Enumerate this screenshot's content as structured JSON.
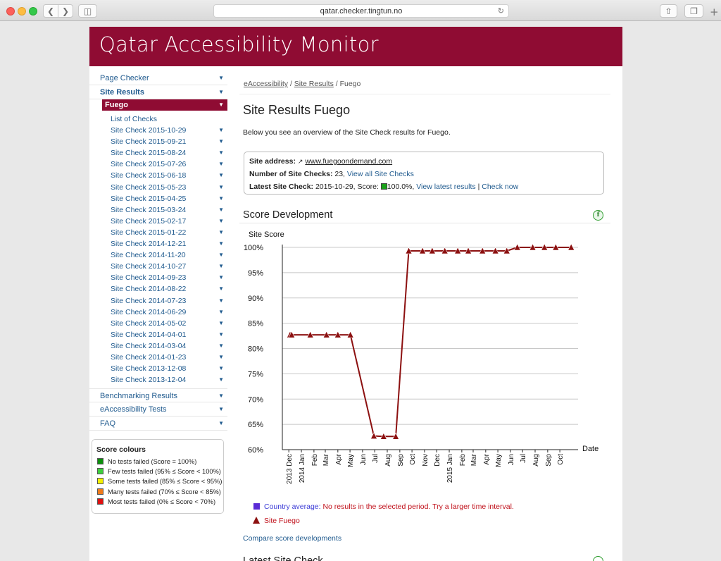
{
  "browser": {
    "url": "qatar.checker.tingtun.no"
  },
  "site": {
    "title": "Qatar Accessibility Monitor"
  },
  "sidebar": {
    "top_items": [
      {
        "label": "Page Checker"
      },
      {
        "label": "Site Results"
      }
    ],
    "current": "Fuego",
    "list_of_checks": "List of Checks",
    "site_checks": [
      "Site Check 2015-10-29",
      "Site Check 2015-09-21",
      "Site Check 2015-08-24",
      "Site Check 2015-07-26",
      "Site Check 2015-06-18",
      "Site Check 2015-05-23",
      "Site Check 2015-04-25",
      "Site Check 2015-03-24",
      "Site Check 2015-02-17",
      "Site Check 2015-01-22",
      "Site Check 2014-12-21",
      "Site Check 2014-11-20",
      "Site Check 2014-10-27",
      "Site Check 2014-09-23",
      "Site Check 2014-08-22",
      "Site Check 2014-07-23",
      "Site Check 2014-06-29",
      "Site Check 2014-05-02",
      "Site Check 2014-04-01",
      "Site Check 2014-03-04",
      "Site Check 2014-01-23",
      "Site Check 2013-12-08",
      "Site Check 2013-12-04"
    ],
    "bottom_items": [
      {
        "label": "Benchmarking Results"
      },
      {
        "label": "eAccessibility Tests"
      },
      {
        "label": "FAQ"
      }
    ]
  },
  "score_colours": {
    "title": "Score colours",
    "items": [
      {
        "label": "No tests failed (Score = 100%)",
        "color": "#0b8f0b"
      },
      {
        "label": "Few tests failed (95% ≤ Score < 100%)",
        "color": "#3ccf3c"
      },
      {
        "label": "Some tests failed (85% ≤ Score < 95%)",
        "color": "#f4f000"
      },
      {
        "label": "Many tests failed (70% ≤ Score < 85%)",
        "color": "#f07a1a"
      },
      {
        "label": "Most tests failed (0% ≤ Score < 70%)",
        "color": "#e01010"
      }
    ]
  },
  "breadcrumb": {
    "items": [
      "eAccessibility",
      "Site Results"
    ],
    "current": "Fuego"
  },
  "main": {
    "heading": "Site Results Fuego",
    "intro": "Below you see an overview of the Site Check results for Fuego.",
    "info": {
      "address_label": "Site address:",
      "address": "www.fuegoondemand.com",
      "checks_label": "Number of Site Checks:",
      "checks_count": "23,",
      "view_all": "View all Site Checks",
      "latest_label": "Latest Site Check:",
      "latest_text": "2015-10-29, Score:",
      "latest_score": "100.0%,",
      "view_latest": "View latest results",
      "sep": "|",
      "check_now": "Check now"
    },
    "score_dev_heading": "Score Development",
    "compare_link": "Compare score developments",
    "next_heading": "Latest Site Check"
  },
  "chart_data": {
    "type": "line",
    "ylabel": "Site Score",
    "xlabel": "Date",
    "ylim": [
      60,
      100
    ],
    "ytick_labels": [
      "100%",
      "95%",
      "90%",
      "85%",
      "80%",
      "75%",
      "70%",
      "65%",
      "60%"
    ],
    "yticks": [
      100,
      95,
      90,
      85,
      80,
      75,
      70,
      65,
      60
    ],
    "x_start": "2013-11-15",
    "x_end": "2015-11-15",
    "xtick_labels": [
      {
        "label": "2013 Dec",
        "date": "2013-12-01"
      },
      {
        "label": "2014 Jan",
        "date": "2014-01-01"
      },
      {
        "label": "Feb",
        "date": "2014-02-01"
      },
      {
        "label": "Mar",
        "date": "2014-03-01"
      },
      {
        "label": "Apr",
        "date": "2014-04-01"
      },
      {
        "label": "May",
        "date": "2014-05-01"
      },
      {
        "label": "Jun",
        "date": "2014-06-01"
      },
      {
        "label": "Jul",
        "date": "2014-07-01"
      },
      {
        "label": "Aug",
        "date": "2014-08-01"
      },
      {
        "label": "Sep",
        "date": "2014-09-01"
      },
      {
        "label": "Oct",
        "date": "2014-10-01"
      },
      {
        "label": "Nov",
        "date": "2014-11-01"
      },
      {
        "label": "Dec",
        "date": "2014-12-01"
      },
      {
        "label": "2015 Jan",
        "date": "2015-01-01"
      },
      {
        "label": "Feb",
        "date": "2015-02-01"
      },
      {
        "label": "Mar",
        "date": "2015-03-01"
      },
      {
        "label": "Apr",
        "date": "2015-04-01"
      },
      {
        "label": "May",
        "date": "2015-05-01"
      },
      {
        "label": "Jun",
        "date": "2015-06-01"
      },
      {
        "label": "Jul",
        "date": "2015-07-01"
      },
      {
        "label": "Aug",
        "date": "2015-08-01"
      },
      {
        "label": "Sep",
        "date": "2015-09-01"
      },
      {
        "label": "Oct",
        "date": "2015-10-01"
      }
    ],
    "series": [
      {
        "name": "Site Fuego",
        "color": "#8c1010",
        "points": [
          {
            "x": "2013-12-04",
            "y": 82.7
          },
          {
            "x": "2013-12-08",
            "y": 82.7
          },
          {
            "x": "2014-01-23",
            "y": 82.7
          },
          {
            "x": "2014-03-04",
            "y": 82.7
          },
          {
            "x": "2014-04-01",
            "y": 82.7
          },
          {
            "x": "2014-05-02",
            "y": 82.7
          },
          {
            "x": "2014-06-29",
            "y": 62.7
          },
          {
            "x": "2014-07-23",
            "y": 62.6
          },
          {
            "x": "2014-08-22",
            "y": 62.6
          },
          {
            "x": "2014-09-23",
            "y": 99.3
          },
          {
            "x": "2014-10-27",
            "y": 99.3
          },
          {
            "x": "2014-11-20",
            "y": 99.3
          },
          {
            "x": "2014-12-21",
            "y": 99.3
          },
          {
            "x": "2015-01-22",
            "y": 99.3
          },
          {
            "x": "2015-02-17",
            "y": 99.3
          },
          {
            "x": "2015-03-24",
            "y": 99.3
          },
          {
            "x": "2015-04-25",
            "y": 99.3
          },
          {
            "x": "2015-05-23",
            "y": 99.3
          },
          {
            "x": "2015-06-18",
            "y": 100.0
          },
          {
            "x": "2015-07-26",
            "y": 100.0
          },
          {
            "x": "2015-08-24",
            "y": 100.0
          },
          {
            "x": "2015-09-21",
            "y": 100.0
          },
          {
            "x": "2015-10-29",
            "y": 100.0
          }
        ]
      }
    ],
    "legend": [
      {
        "label": "Country average:",
        "note": "No results in the selected period. Try a larger time interval.",
        "color": "#5a2bd6"
      },
      {
        "label": "Site Fuego",
        "color": "#8c1010"
      }
    ]
  }
}
